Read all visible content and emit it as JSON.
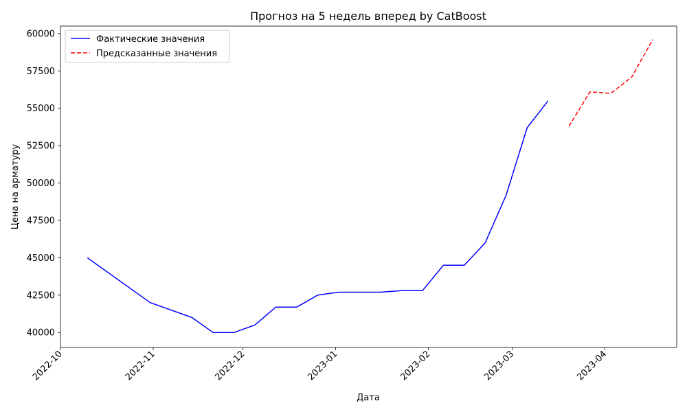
{
  "chart_data": {
    "type": "line",
    "title": "Прогноз на 5 недель вперед by CatBoost",
    "xlabel": "Дата",
    "ylabel": "Цена на арматуру",
    "x_range": [
      "2022-10-01",
      "2023-04-25"
    ],
    "ylim": [
      39000,
      60500
    ],
    "x_ticks": [
      "2022-10-01",
      "2022-11-01",
      "2022-12-01",
      "2023-01-01",
      "2023-02-01",
      "2023-03-01",
      "2023-04-01"
    ],
    "x_tick_labels": [
      "2022-10",
      "2022-11",
      "2022-12",
      "2023-01",
      "2023-02",
      "2023-03",
      "2023-04"
    ],
    "y_ticks": [
      40000,
      42500,
      45000,
      47500,
      50000,
      52500,
      55000,
      57500,
      60000
    ],
    "y_tick_labels": [
      "40000",
      "42500",
      "45000",
      "47500",
      "50000",
      "52500",
      "55000",
      "57500",
      "60000"
    ],
    "grid": false,
    "legend_position": "top-left",
    "series": [
      {
        "name": "Фактические значения",
        "color": "#0000ff",
        "style": "solid",
        "x": [
          "2022-10-10",
          "2022-10-31",
          "2022-11-14",
          "2022-11-21",
          "2022-11-28",
          "2022-12-05",
          "2022-12-12",
          "2022-12-19",
          "2022-12-26",
          "2023-01-02",
          "2023-01-16",
          "2023-01-23",
          "2023-01-30",
          "2023-02-06",
          "2023-02-13",
          "2023-02-20",
          "2023-02-27",
          "2023-03-06",
          "2023-03-13"
        ],
        "values": [
          45000,
          42000,
          41000,
          40000,
          40000,
          40500,
          41700,
          41700,
          42500,
          42700,
          42700,
          42800,
          42800,
          44500,
          44500,
          46000,
          49200,
          53700,
          55500
        ]
      },
      {
        "name": "Предсказанные значения",
        "color": "#ff0000",
        "style": "dashed",
        "x": [
          "2023-03-20",
          "2023-03-27",
          "2023-04-03",
          "2023-04-10",
          "2023-04-17"
        ],
        "values": [
          53800,
          56100,
          56000,
          57100,
          59600
        ]
      }
    ]
  }
}
